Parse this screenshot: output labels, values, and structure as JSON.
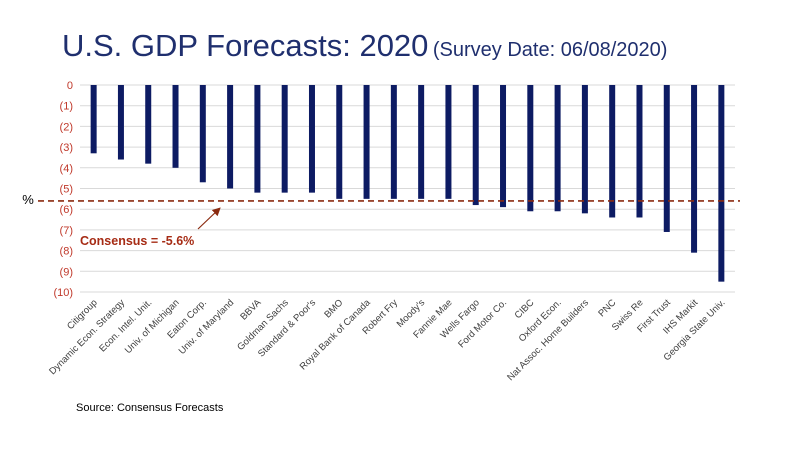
{
  "title": {
    "main": "U.S. GDP Forecasts: 2020",
    "sub": "(Survey Date: 06/08/2020)"
  },
  "source": "Source: Consensus Forecasts",
  "colors": {
    "bar": "#0d1b63",
    "tick_label": "#c0392b",
    "consensus": "#8b2b10",
    "title": "#1f2f6e"
  },
  "chart_data": {
    "type": "bar",
    "ylabel": "%",
    "ylim": [
      -10,
      0
    ],
    "grid": true,
    "y_ticks": [
      0,
      -1,
      -2,
      -3,
      -4,
      -5,
      -6,
      -7,
      -8,
      -9,
      -10
    ],
    "y_tick_labels": [
      "0",
      "(1)",
      "(2)",
      "(3)",
      "(4)",
      "(5)",
      "(6)",
      "(7)",
      "(8)",
      "(9)",
      "(10)"
    ],
    "categories": [
      "Citigroup",
      "Dynamic Econ. Strategy",
      "Econ. Intel. Unit.",
      "Univ. of Michigan",
      "Eaton Corp.",
      "Univ. of Maryland",
      "BBVA",
      "Goldman Sachs",
      "Standard & Poor's",
      "BMO",
      "Royal Bank of Canada",
      "Robert Fry",
      "Moody's",
      "Fannie Mae",
      "Wells Fargo",
      "Ford Motor Co.",
      "CIBC",
      "Oxford Econ.",
      "Nat Assoc. Home Builders",
      "PNC",
      "Swiss Re",
      "First Trust",
      "IHS Markit",
      "Georgia State Univ."
    ],
    "values": [
      -3.3,
      -3.6,
      -3.8,
      -4.0,
      -4.7,
      -5.0,
      -5.2,
      -5.2,
      -5.2,
      -5.5,
      -5.5,
      -5.5,
      -5.5,
      -5.5,
      -5.8,
      -5.9,
      -6.1,
      -6.1,
      -6.2,
      -6.4,
      -6.4,
      -7.1,
      -8.1,
      -9.5
    ],
    "consensus": {
      "value": -5.6,
      "label": "Consensus = -5.6%"
    }
  }
}
